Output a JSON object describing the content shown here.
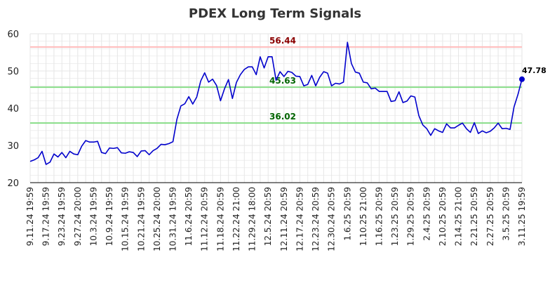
{
  "chart_data": {
    "type": "line",
    "title": "PDEX Long Term Signals",
    "ylim": [
      20,
      60
    ],
    "yticks": [
      20,
      30,
      40,
      50,
      60
    ],
    "grid": true,
    "colors": {
      "line": "#0000cc",
      "resistance": "#ffbbbb",
      "support": "#88dd88",
      "resistance_text": "#8b0000",
      "support_text": "#006400",
      "grid": "#e6e6e6"
    },
    "xtick_labels": [
      "9.11.24 19:59",
      "9.17.24 19:59",
      "9.23.24 19:59",
      "9.27.24 20:00",
      "10.3.24 19:59",
      "10.9.24 19:59",
      "10.15.24 19:59",
      "10.21.24 19:59",
      "10.25.24 20:00",
      "10.31.24 19:59",
      "11.6.24 20:59",
      "11.12.24 20:59",
      "11.18.24 20:59",
      "11.22.24 21:00",
      "11.29.24 18:00",
      "12.5.24 20:59",
      "12.11.24 20:59",
      "12.17.24 20:59",
      "12.23.24 20:59",
      "12.30.24 20:59",
      "1.6.25 20:59",
      "1.10.25 21:00",
      "1.16.25 20:59",
      "1.23.25 20:59",
      "1.29.25 20:59",
      "2.4.25 20:59",
      "2.10.25 20:59",
      "2.14.25 21:00",
      "2.21.25 20:59",
      "2.27.25 20:59",
      "3.5.25 20:59",
      "3.11.25 19:59"
    ],
    "xtick_positions": [
      0,
      4,
      8,
      12,
      16,
      20,
      24,
      28,
      32,
      36,
      40,
      44,
      48,
      52,
      56,
      60,
      64,
      68,
      72,
      76,
      80,
      84,
      88,
      92,
      96,
      100,
      104,
      108,
      112,
      116,
      120,
      124
    ],
    "series": [
      {
        "values": [
          25.7,
          26.1,
          26.7,
          28.4,
          24.9,
          25.5,
          27.7,
          26.9,
          28.1,
          26.7,
          28.4,
          27.7,
          27.5,
          29.8,
          31.3,
          30.9,
          30.9,
          31.1,
          28.1,
          27.8,
          29.3,
          29.2,
          29.4,
          28.0,
          27.9,
          28.3,
          28.1,
          27.0,
          28.5,
          28.6,
          27.5,
          28.6,
          29.2,
          30.3,
          30.2,
          30.5,
          31.0,
          37.0,
          40.6,
          41.2,
          43.1,
          41.1,
          43.0,
          47.3,
          49.5,
          47.0,
          47.8,
          46.1,
          42.0,
          45.2,
          47.7,
          42.6,
          46.9,
          49.0,
          50.4,
          51.1,
          51.1,
          49.0,
          53.8,
          50.8,
          53.8,
          53.8,
          47.5,
          49.8,
          48.5,
          49.9,
          49.6,
          48.6,
          48.5,
          46.0,
          46.4,
          48.8,
          46.0,
          48.3,
          49.8,
          49.4,
          46.0,
          46.7,
          46.5,
          47.0,
          57.7,
          52.0,
          49.7,
          49.4,
          47.0,
          46.8,
          45.2,
          45.4,
          44.5,
          44.5,
          44.5,
          41.8,
          42.0,
          44.4,
          41.5,
          41.9,
          43.3,
          43.0,
          38.0,
          35.5,
          34.5,
          32.7,
          34.5,
          33.9,
          33.5,
          35.8,
          34.7,
          34.7,
          35.4,
          36.0,
          34.5,
          33.5,
          36.1,
          33.2,
          33.9,
          33.4,
          33.8,
          34.7,
          36.0,
          34.5,
          34.6,
          34.3,
          40.3,
          43.7,
          47.78
        ]
      }
    ],
    "lines": [
      {
        "value": 56.44,
        "label": "56.44",
        "kind": "resistance"
      },
      {
        "value": 45.63,
        "label": "45.63",
        "kind": "support"
      },
      {
        "value": 36.02,
        "label": "36.02",
        "kind": "support"
      }
    ],
    "last_point": {
      "value": 47.78,
      "label": "47.78"
    }
  }
}
